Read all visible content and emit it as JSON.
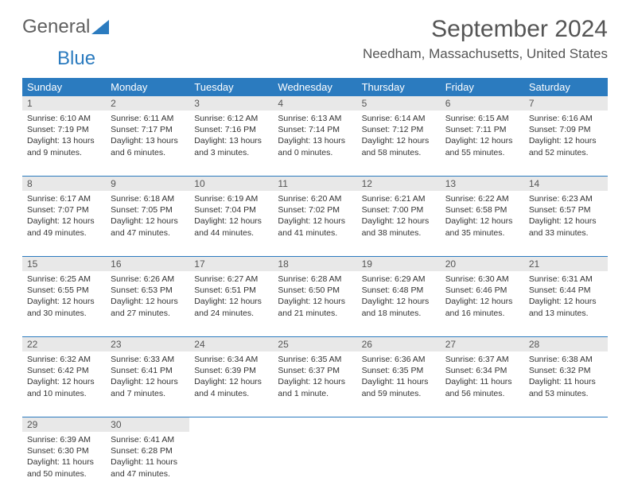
{
  "brand": {
    "part1": "General",
    "part2": "Blue"
  },
  "title": "September 2024",
  "location": "Needham, Massachusetts, United States",
  "colors": {
    "header_bg": "#2b7bbf",
    "header_text": "#ffffff",
    "daynum_bg": "#e8e8e8",
    "border": "#2b7bbf",
    "text": "#333333"
  },
  "dayNames": [
    "Sunday",
    "Monday",
    "Tuesday",
    "Wednesday",
    "Thursday",
    "Friday",
    "Saturday"
  ],
  "weeks": [
    [
      {
        "n": "1",
        "sr": "Sunrise: 6:10 AM",
        "ss": "Sunset: 7:19 PM",
        "dl": "Daylight: 13 hours and 9 minutes."
      },
      {
        "n": "2",
        "sr": "Sunrise: 6:11 AM",
        "ss": "Sunset: 7:17 PM",
        "dl": "Daylight: 13 hours and 6 minutes."
      },
      {
        "n": "3",
        "sr": "Sunrise: 6:12 AM",
        "ss": "Sunset: 7:16 PM",
        "dl": "Daylight: 13 hours and 3 minutes."
      },
      {
        "n": "4",
        "sr": "Sunrise: 6:13 AM",
        "ss": "Sunset: 7:14 PM",
        "dl": "Daylight: 13 hours and 0 minutes."
      },
      {
        "n": "5",
        "sr": "Sunrise: 6:14 AM",
        "ss": "Sunset: 7:12 PM",
        "dl": "Daylight: 12 hours and 58 minutes."
      },
      {
        "n": "6",
        "sr": "Sunrise: 6:15 AM",
        "ss": "Sunset: 7:11 PM",
        "dl": "Daylight: 12 hours and 55 minutes."
      },
      {
        "n": "7",
        "sr": "Sunrise: 6:16 AM",
        "ss": "Sunset: 7:09 PM",
        "dl": "Daylight: 12 hours and 52 minutes."
      }
    ],
    [
      {
        "n": "8",
        "sr": "Sunrise: 6:17 AM",
        "ss": "Sunset: 7:07 PM",
        "dl": "Daylight: 12 hours and 49 minutes."
      },
      {
        "n": "9",
        "sr": "Sunrise: 6:18 AM",
        "ss": "Sunset: 7:05 PM",
        "dl": "Daylight: 12 hours and 47 minutes."
      },
      {
        "n": "10",
        "sr": "Sunrise: 6:19 AM",
        "ss": "Sunset: 7:04 PM",
        "dl": "Daylight: 12 hours and 44 minutes."
      },
      {
        "n": "11",
        "sr": "Sunrise: 6:20 AM",
        "ss": "Sunset: 7:02 PM",
        "dl": "Daylight: 12 hours and 41 minutes."
      },
      {
        "n": "12",
        "sr": "Sunrise: 6:21 AM",
        "ss": "Sunset: 7:00 PM",
        "dl": "Daylight: 12 hours and 38 minutes."
      },
      {
        "n": "13",
        "sr": "Sunrise: 6:22 AM",
        "ss": "Sunset: 6:58 PM",
        "dl": "Daylight: 12 hours and 35 minutes."
      },
      {
        "n": "14",
        "sr": "Sunrise: 6:23 AM",
        "ss": "Sunset: 6:57 PM",
        "dl": "Daylight: 12 hours and 33 minutes."
      }
    ],
    [
      {
        "n": "15",
        "sr": "Sunrise: 6:25 AM",
        "ss": "Sunset: 6:55 PM",
        "dl": "Daylight: 12 hours and 30 minutes."
      },
      {
        "n": "16",
        "sr": "Sunrise: 6:26 AM",
        "ss": "Sunset: 6:53 PM",
        "dl": "Daylight: 12 hours and 27 minutes."
      },
      {
        "n": "17",
        "sr": "Sunrise: 6:27 AM",
        "ss": "Sunset: 6:51 PM",
        "dl": "Daylight: 12 hours and 24 minutes."
      },
      {
        "n": "18",
        "sr": "Sunrise: 6:28 AM",
        "ss": "Sunset: 6:50 PM",
        "dl": "Daylight: 12 hours and 21 minutes."
      },
      {
        "n": "19",
        "sr": "Sunrise: 6:29 AM",
        "ss": "Sunset: 6:48 PM",
        "dl": "Daylight: 12 hours and 18 minutes."
      },
      {
        "n": "20",
        "sr": "Sunrise: 6:30 AM",
        "ss": "Sunset: 6:46 PM",
        "dl": "Daylight: 12 hours and 16 minutes."
      },
      {
        "n": "21",
        "sr": "Sunrise: 6:31 AM",
        "ss": "Sunset: 6:44 PM",
        "dl": "Daylight: 12 hours and 13 minutes."
      }
    ],
    [
      {
        "n": "22",
        "sr": "Sunrise: 6:32 AM",
        "ss": "Sunset: 6:42 PM",
        "dl": "Daylight: 12 hours and 10 minutes."
      },
      {
        "n": "23",
        "sr": "Sunrise: 6:33 AM",
        "ss": "Sunset: 6:41 PM",
        "dl": "Daylight: 12 hours and 7 minutes."
      },
      {
        "n": "24",
        "sr": "Sunrise: 6:34 AM",
        "ss": "Sunset: 6:39 PM",
        "dl": "Daylight: 12 hours and 4 minutes."
      },
      {
        "n": "25",
        "sr": "Sunrise: 6:35 AM",
        "ss": "Sunset: 6:37 PM",
        "dl": "Daylight: 12 hours and 1 minute."
      },
      {
        "n": "26",
        "sr": "Sunrise: 6:36 AM",
        "ss": "Sunset: 6:35 PM",
        "dl": "Daylight: 11 hours and 59 minutes."
      },
      {
        "n": "27",
        "sr": "Sunrise: 6:37 AM",
        "ss": "Sunset: 6:34 PM",
        "dl": "Daylight: 11 hours and 56 minutes."
      },
      {
        "n": "28",
        "sr": "Sunrise: 6:38 AM",
        "ss": "Sunset: 6:32 PM",
        "dl": "Daylight: 11 hours and 53 minutes."
      }
    ],
    [
      {
        "n": "29",
        "sr": "Sunrise: 6:39 AM",
        "ss": "Sunset: 6:30 PM",
        "dl": "Daylight: 11 hours and 50 minutes."
      },
      {
        "n": "30",
        "sr": "Sunrise: 6:41 AM",
        "ss": "Sunset: 6:28 PM",
        "dl": "Daylight: 11 hours and 47 minutes."
      },
      null,
      null,
      null,
      null,
      null
    ]
  ]
}
